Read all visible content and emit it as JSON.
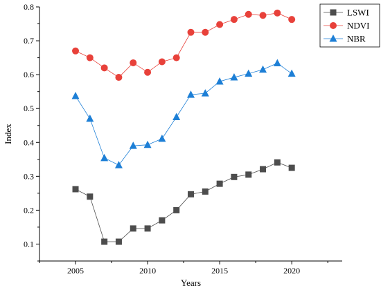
{
  "chart_data": {
    "type": "line",
    "xlabel": "Years",
    "ylabel": "Index",
    "xlim": [
      2002.5,
      2023.5
    ],
    "ylim": [
      0.05,
      0.8
    ],
    "xticks": [
      2005,
      2010,
      2015,
      2020
    ],
    "xtick_labels": [
      "2005",
      "2010",
      "2015",
      "2020"
    ],
    "yticks": [
      0.1,
      0.2,
      0.3,
      0.4,
      0.5,
      0.6,
      0.7,
      0.8
    ],
    "ytick_labels": [
      "0.1",
      "0.2",
      "0.3",
      "0.4",
      "0.5",
      "0.6",
      "0.7",
      "0.8"
    ],
    "grid": false,
    "legend_position": "top-right",
    "x": [
      2005,
      2006,
      2007,
      2008,
      2009,
      2010,
      2011,
      2012,
      2013,
      2014,
      2015,
      2016,
      2017,
      2018,
      2019,
      2020
    ],
    "series": [
      {
        "name": "LSWI",
        "marker": "square",
        "color": "#4d4d4d",
        "values": [
          0.262,
          0.24,
          0.107,
          0.107,
          0.146,
          0.146,
          0.17,
          0.2,
          0.247,
          0.255,
          0.278,
          0.298,
          0.305,
          0.321,
          0.341,
          0.325
        ]
      },
      {
        "name": "NDVI",
        "marker": "circle",
        "color": "#e8413a",
        "values": [
          0.67,
          0.65,
          0.62,
          0.592,
          0.635,
          0.607,
          0.638,
          0.65,
          0.725,
          0.725,
          0.748,
          0.763,
          0.778,
          0.775,
          0.782,
          0.763
        ]
      },
      {
        "name": "NBR",
        "marker": "triangle",
        "color": "#1d7fd6",
        "values": [
          0.537,
          0.47,
          0.354,
          0.333,
          0.39,
          0.393,
          0.411,
          0.475,
          0.541,
          0.545,
          0.58,
          0.592,
          0.603,
          0.615,
          0.634,
          0.603
        ]
      }
    ]
  }
}
